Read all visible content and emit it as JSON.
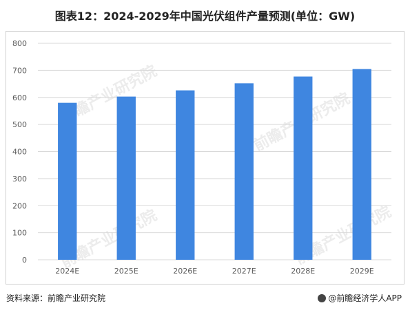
{
  "title": "图表12：2024-2029年中国光伏组件产量预测(单位：GW)",
  "source": "资料来源：前瞻产业研究院",
  "brand": "@前瞻经济学人APP",
  "watermark": "前瞻产业研究院",
  "colors": {
    "bar": "#3f86e0",
    "grid": "#d9d9d9",
    "axis_text": "#595959"
  },
  "chart_data": {
    "type": "bar",
    "categories": [
      "2024E",
      "2025E",
      "2026E",
      "2027E",
      "2028E",
      "2029E"
    ],
    "values": [
      580,
      603,
      626,
      652,
      677,
      705
    ],
    "ylim": [
      0,
      800
    ],
    "yticks": [
      0,
      100,
      200,
      300,
      400,
      500,
      600,
      700,
      800
    ],
    "grid": true,
    "xlabel": "",
    "ylabel": ""
  }
}
